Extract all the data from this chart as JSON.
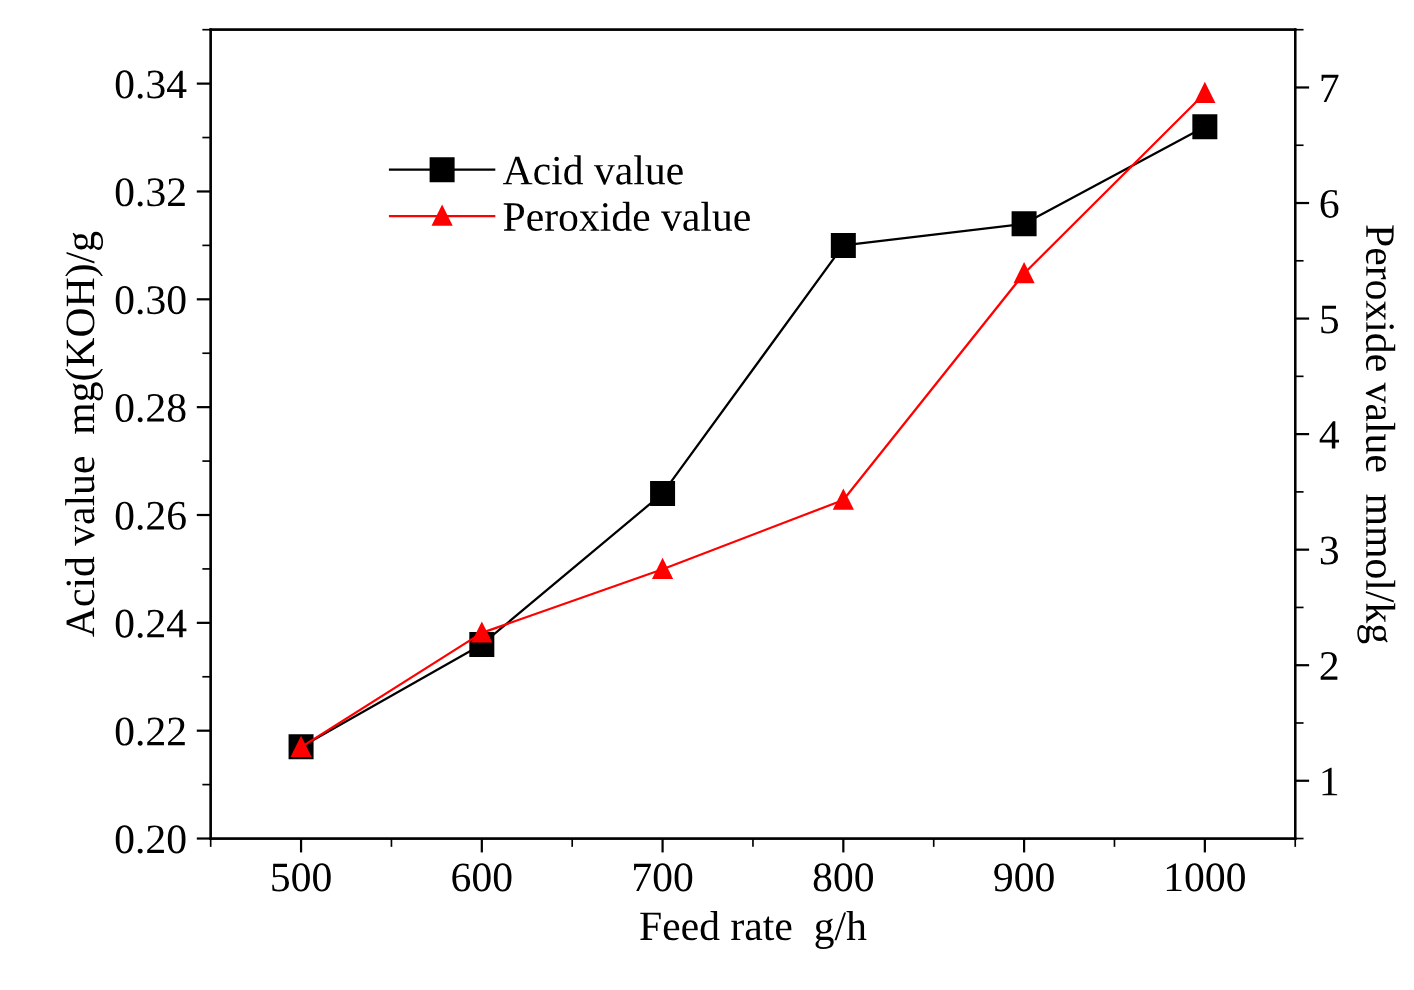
{
  "chart_data": {
    "type": "line",
    "xlabel": "Feed rate  g/h",
    "ylabel": "Acid value  mg(KOH)/g",
    "y2label": "Peroxide value  mmol/kg",
    "x": [
      500,
      600,
      700,
      800,
      900,
      1000
    ],
    "series": [
      {
        "name": "Acid value",
        "color": "#000000",
        "marker": "square",
        "values": [
          0.217,
          0.236,
          0.264,
          0.31,
          0.314,
          0.332
        ]
      },
      {
        "name": "Peroxide value",
        "color": "#ff0000",
        "marker": "triangle",
        "axis": "y2",
        "values": [
          1.29,
          2.28,
          2.83,
          3.43,
          5.39,
          6.95
        ]
      }
    ],
    "xlim": [
      450,
      1050
    ],
    "xticks": [
      500,
      600,
      700,
      800,
      900,
      1000
    ],
    "ylim": [
      0.2,
      0.35
    ],
    "yticks": [
      {
        "value": 0.2,
        "label": "0.20"
      },
      {
        "value": 0.22,
        "label": "0.22"
      },
      {
        "value": 0.24,
        "label": "0.24"
      },
      {
        "value": 0.26,
        "label": "0.26"
      },
      {
        "value": 0.28,
        "label": "0.28"
      },
      {
        "value": 0.3,
        "label": "0.30"
      },
      {
        "value": 0.32,
        "label": "0.32"
      },
      {
        "value": 0.34,
        "label": "0.34"
      }
    ],
    "y2lim": [
      0.5,
      7.5
    ],
    "y2ticks": [
      1,
      2,
      3,
      4,
      5,
      6,
      7
    ],
    "grid": false,
    "legend": "top left",
    "line_style": "solid"
  }
}
